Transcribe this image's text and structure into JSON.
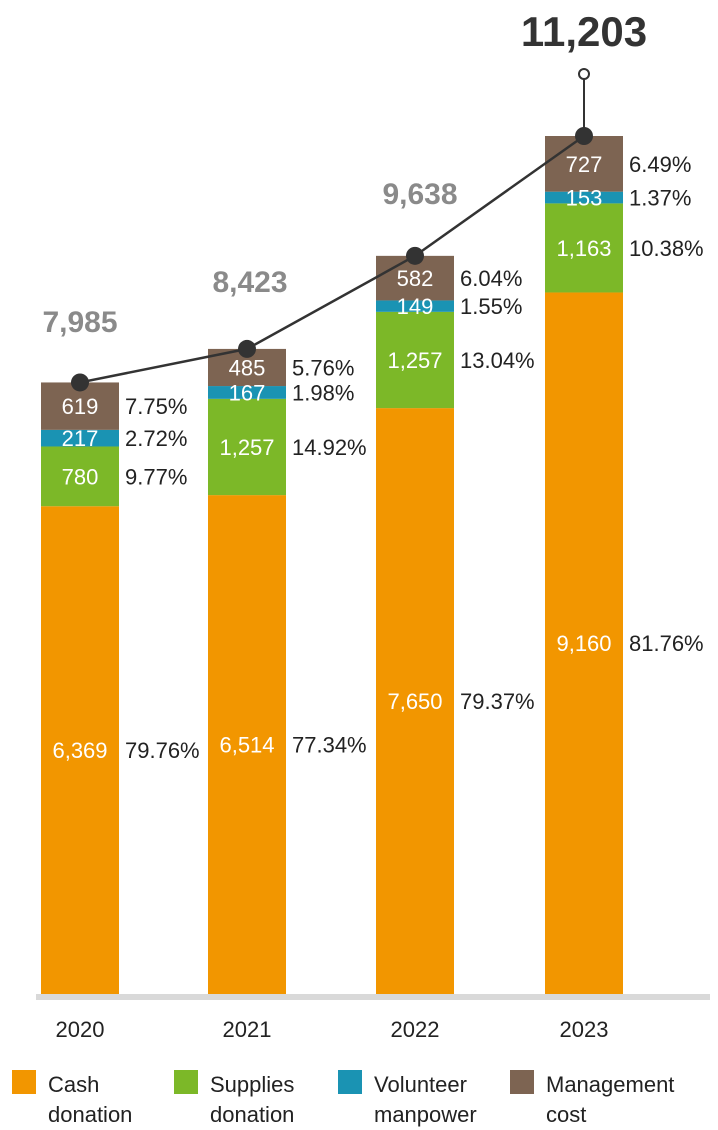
{
  "chart_data": {
    "type": "bar",
    "stacked": true,
    "categories": [
      "2020",
      "2021",
      "2022",
      "2023"
    ],
    "series": [
      {
        "name": "Cash donation",
        "color": "#f29600",
        "values": [
          6369,
          6514,
          7650,
          9160
        ],
        "value_labels": [
          "6,369",
          "6,514",
          "7,650",
          "9,160"
        ],
        "pct_labels": [
          "79.76%",
          "77.34%",
          "79.37%",
          "81.76%"
        ]
      },
      {
        "name": "Supplies donation",
        "color": "#7cb828",
        "values": [
          780,
          1257,
          1257,
          1163
        ],
        "value_labels": [
          "780",
          "1,257",
          "1,257",
          "1,163"
        ],
        "pct_labels": [
          "9.77%",
          "14.92%",
          "13.04%",
          "10.38%"
        ]
      },
      {
        "name": "Volunteer manpower",
        "color": "#1a93b3",
        "values": [
          217,
          167,
          149,
          153
        ],
        "value_labels": [
          "217",
          "167",
          "149",
          "153"
        ],
        "pct_labels": [
          "2.72%",
          "1.98%",
          "1.55%",
          "1.37%"
        ]
      },
      {
        "name": "Management cost",
        "color": "#7d6452",
        "values": [
          619,
          485,
          582,
          727
        ],
        "value_labels": [
          "619",
          "485",
          "582",
          "727"
        ],
        "pct_labels": [
          "7.75%",
          "5.76%",
          "6.04%",
          "6.49%"
        ]
      }
    ],
    "totals": [
      7985,
      8423,
      9638,
      11203
    ],
    "total_labels": [
      "7,985",
      "8,423",
      "9,638",
      "11,203"
    ],
    "line": {
      "color": "#333333"
    },
    "legend": {
      "position": "bottom",
      "entries": [
        {
          "lines": [
            "Cash",
            "donation"
          ],
          "color": "#f29600"
        },
        {
          "lines": [
            "Supplies",
            "donation"
          ],
          "color": "#7cb828"
        },
        {
          "lines": [
            "Volunteer",
            "manpower"
          ],
          "color": "#1a93b3"
        },
        {
          "lines": [
            "Management",
            "cost"
          ],
          "color": "#7d6452"
        }
      ]
    },
    "ylim": [
      0,
      11203
    ],
    "grid": false
  }
}
